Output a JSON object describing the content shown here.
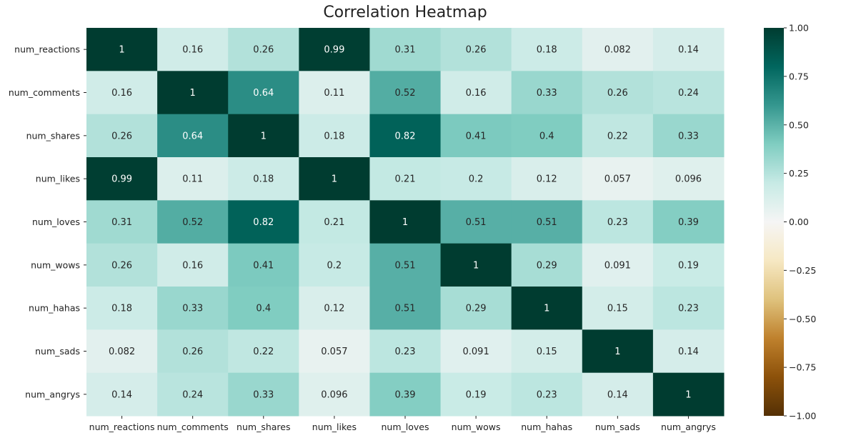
{
  "chart_data": {
    "type": "heatmap",
    "title": "Correlation Heatmap",
    "variables": [
      "num_reactions",
      "num_comments",
      "num_shares",
      "num_likes",
      "num_loves",
      "num_wows",
      "num_hahas",
      "num_sads",
      "num_angrys"
    ],
    "values": [
      [
        1,
        0.16,
        0.26,
        0.99,
        0.31,
        0.26,
        0.18,
        0.082,
        0.14
      ],
      [
        0.16,
        1,
        0.64,
        0.11,
        0.52,
        0.16,
        0.33,
        0.26,
        0.24
      ],
      [
        0.26,
        0.64,
        1,
        0.18,
        0.82,
        0.41,
        0.4,
        0.22,
        0.33
      ],
      [
        0.99,
        0.11,
        0.18,
        1,
        0.21,
        0.2,
        0.12,
        0.057,
        0.096
      ],
      [
        0.31,
        0.52,
        0.82,
        0.21,
        1,
        0.51,
        0.51,
        0.23,
        0.39
      ],
      [
        0.26,
        0.16,
        0.41,
        0.2,
        0.51,
        1,
        0.29,
        0.091,
        0.19
      ],
      [
        0.18,
        0.33,
        0.4,
        0.12,
        0.51,
        0.29,
        1,
        0.15,
        0.23
      ],
      [
        0.082,
        0.26,
        0.22,
        0.057,
        0.23,
        0.091,
        0.15,
        1,
        0.14
      ],
      [
        0.14,
        0.24,
        0.33,
        0.096,
        0.39,
        0.19,
        0.23,
        0.14,
        1
      ]
    ],
    "value_labels": [
      [
        "1",
        "0.16",
        "0.26",
        "0.99",
        "0.31",
        "0.26",
        "0.18",
        "0.082",
        "0.14"
      ],
      [
        "0.16",
        "1",
        "0.64",
        "0.11",
        "0.52",
        "0.16",
        "0.33",
        "0.26",
        "0.24"
      ],
      [
        "0.26",
        "0.64",
        "1",
        "0.18",
        "0.82",
        "0.41",
        "0.4",
        "0.22",
        "0.33"
      ],
      [
        "0.99",
        "0.11",
        "0.18",
        "1",
        "0.21",
        "0.2",
        "0.12",
        "0.057",
        "0.096"
      ],
      [
        "0.31",
        "0.52",
        "0.82",
        "0.21",
        "1",
        "0.51",
        "0.51",
        "0.23",
        "0.39"
      ],
      [
        "0.26",
        "0.16",
        "0.41",
        "0.2",
        "0.51",
        "1",
        "0.29",
        "0.091",
        "0.19"
      ],
      [
        "0.18",
        "0.33",
        "0.4",
        "0.12",
        "0.51",
        "0.29",
        "1",
        "0.15",
        "0.23"
      ],
      [
        "0.082",
        "0.26",
        "0.22",
        "0.057",
        "0.23",
        "0.091",
        "0.15",
        "1",
        "0.14"
      ],
      [
        "0.14",
        "0.24",
        "0.33",
        "0.096",
        "0.39",
        "0.19",
        "0.23",
        "0.14",
        "1"
      ]
    ],
    "colorbar": {
      "range": [
        -1,
        1
      ],
      "ticks": [
        1,
        0.75,
        0.5,
        0.25,
        0,
        -0.25,
        -0.5,
        -0.75,
        -1
      ],
      "tick_labels": [
        "1.00",
        "0.75",
        "0.50",
        "0.25",
        "0.00",
        "−0.25",
        "−0.50",
        "−0.75",
        "−1.00"
      ],
      "colormap": "BrBG"
    },
    "grid": false,
    "legend": "colorbar-right"
  }
}
